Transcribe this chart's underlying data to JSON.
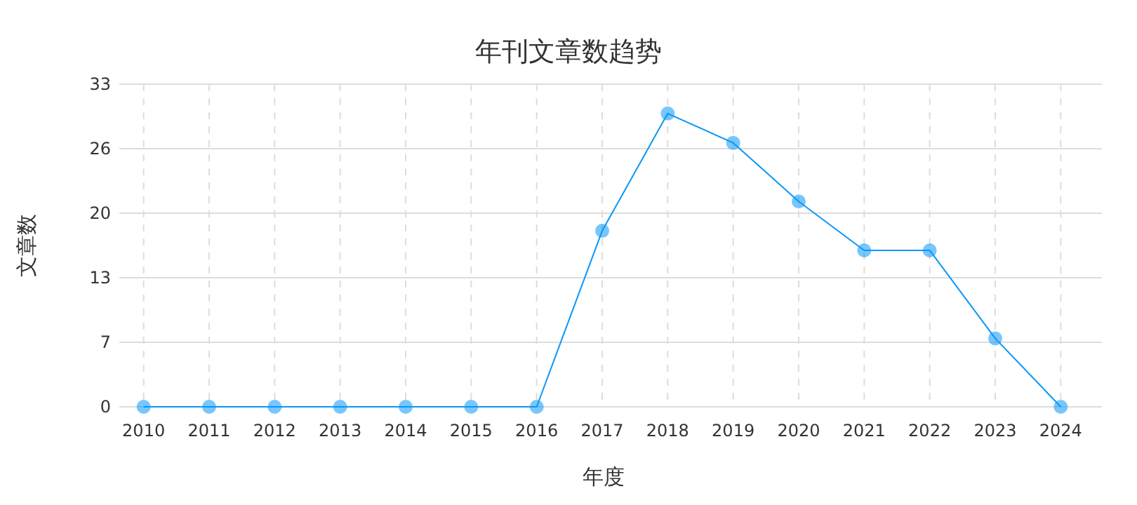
{
  "chart_data": {
    "type": "line",
    "title": "年刊文章数趋势",
    "xlabel": "年度",
    "ylabel": "文章数",
    "categories": [
      "2010",
      "2011",
      "2012",
      "2013",
      "2014",
      "2015",
      "2016",
      "2017",
      "2018",
      "2019",
      "2020",
      "2021",
      "2022",
      "2023",
      "2024"
    ],
    "series": [
      {
        "color": "#0a97f7",
        "values": [
          0,
          0,
          0,
          0,
          0,
          0,
          0,
          18,
          30,
          27,
          21,
          16,
          16,
          7,
          0
        ]
      }
    ],
    "ylim": [
      0,
      33
    ],
    "yticks": [
      0,
      {
        "value": 6.6,
        "label": "7"
      },
      {
        "value": 13.2,
        "label": "13"
      },
      {
        "value": 19.8,
        "label": "20"
      },
      {
        "value": 26.4,
        "label": "26"
      },
      33
    ],
    "grid": true,
    "marker": "circle",
    "line_style": "solid"
  }
}
